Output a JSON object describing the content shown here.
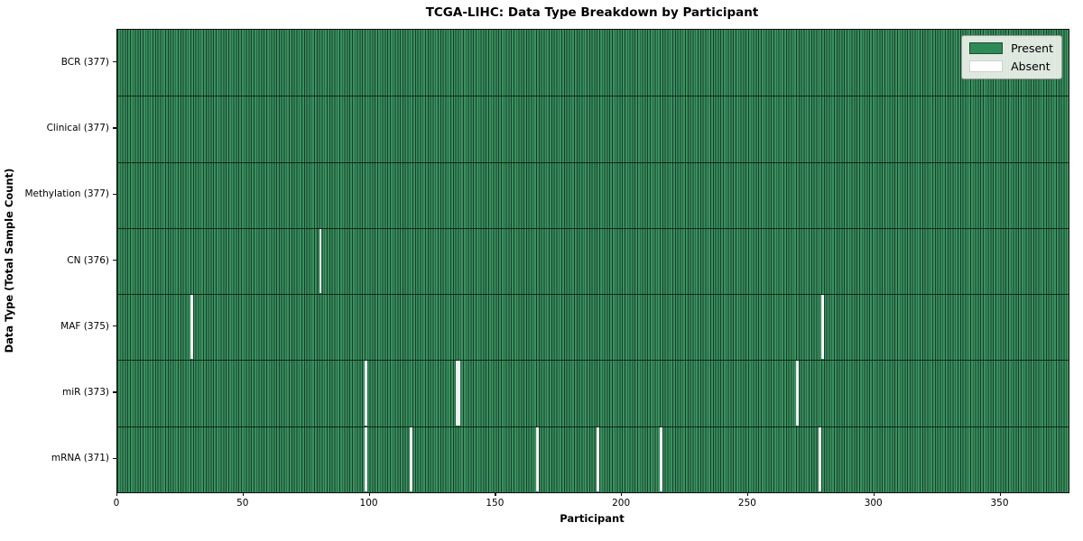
{
  "chart": {
    "title": "TCGA-LIHC: Data Type Breakdown by Participant",
    "xlabel": "Participant",
    "ylabel": "Data Type (Total Sample Count)"
  },
  "legend": {
    "present_label": "Present",
    "absent_label": "Absent"
  },
  "chart_data": {
    "type": "heatmap",
    "title": "TCGA-LIHC: Data Type Breakdown by Participant",
    "xlabel": "Participant",
    "ylabel": "Data Type (Total Sample Count)",
    "n_participants": 377,
    "x_range": [
      0,
      377
    ],
    "x_ticks": [
      0,
      50,
      100,
      150,
      200,
      250,
      300,
      350
    ],
    "rows": [
      {
        "label": "BCR (377)",
        "data_type": "BCR",
        "present_count": 377,
        "absent_count": 0,
        "absent_participants": []
      },
      {
        "label": "Clinical (377)",
        "data_type": "Clinical",
        "present_count": 377,
        "absent_count": 0,
        "absent_participants": []
      },
      {
        "label": "Methylation (377)",
        "data_type": "Methylation",
        "present_count": 377,
        "absent_count": 0,
        "absent_participants": []
      },
      {
        "label": "CN (376)",
        "data_type": "CN",
        "present_count": 376,
        "absent_count": 1,
        "absent_participants": [
          80
        ]
      },
      {
        "label": "MAF (375)",
        "data_type": "MAF",
        "present_count": 375,
        "absent_count": 2,
        "absent_participants": [
          29,
          279
        ]
      },
      {
        "label": "miR (373)",
        "data_type": "miR",
        "present_count": 373,
        "absent_count": 4,
        "absent_participants": [
          98,
          134,
          135,
          269
        ]
      },
      {
        "label": "mRNA (371)",
        "data_type": "mRNA",
        "present_count": 371,
        "absent_count": 6,
        "absent_participants": [
          98,
          116,
          166,
          190,
          215,
          278
        ]
      }
    ],
    "legend_entries": [
      {
        "label": "Present",
        "color": "#2e8b57"
      },
      {
        "label": "Absent",
        "color": "#ffffff"
      }
    ],
    "layout_hints": {
      "legend_position": "upper right",
      "grid": "cell-edges",
      "present_color": "#2e8b57",
      "absent_color": "#ffffff",
      "cell_edge_color": "#173f29"
    }
  }
}
